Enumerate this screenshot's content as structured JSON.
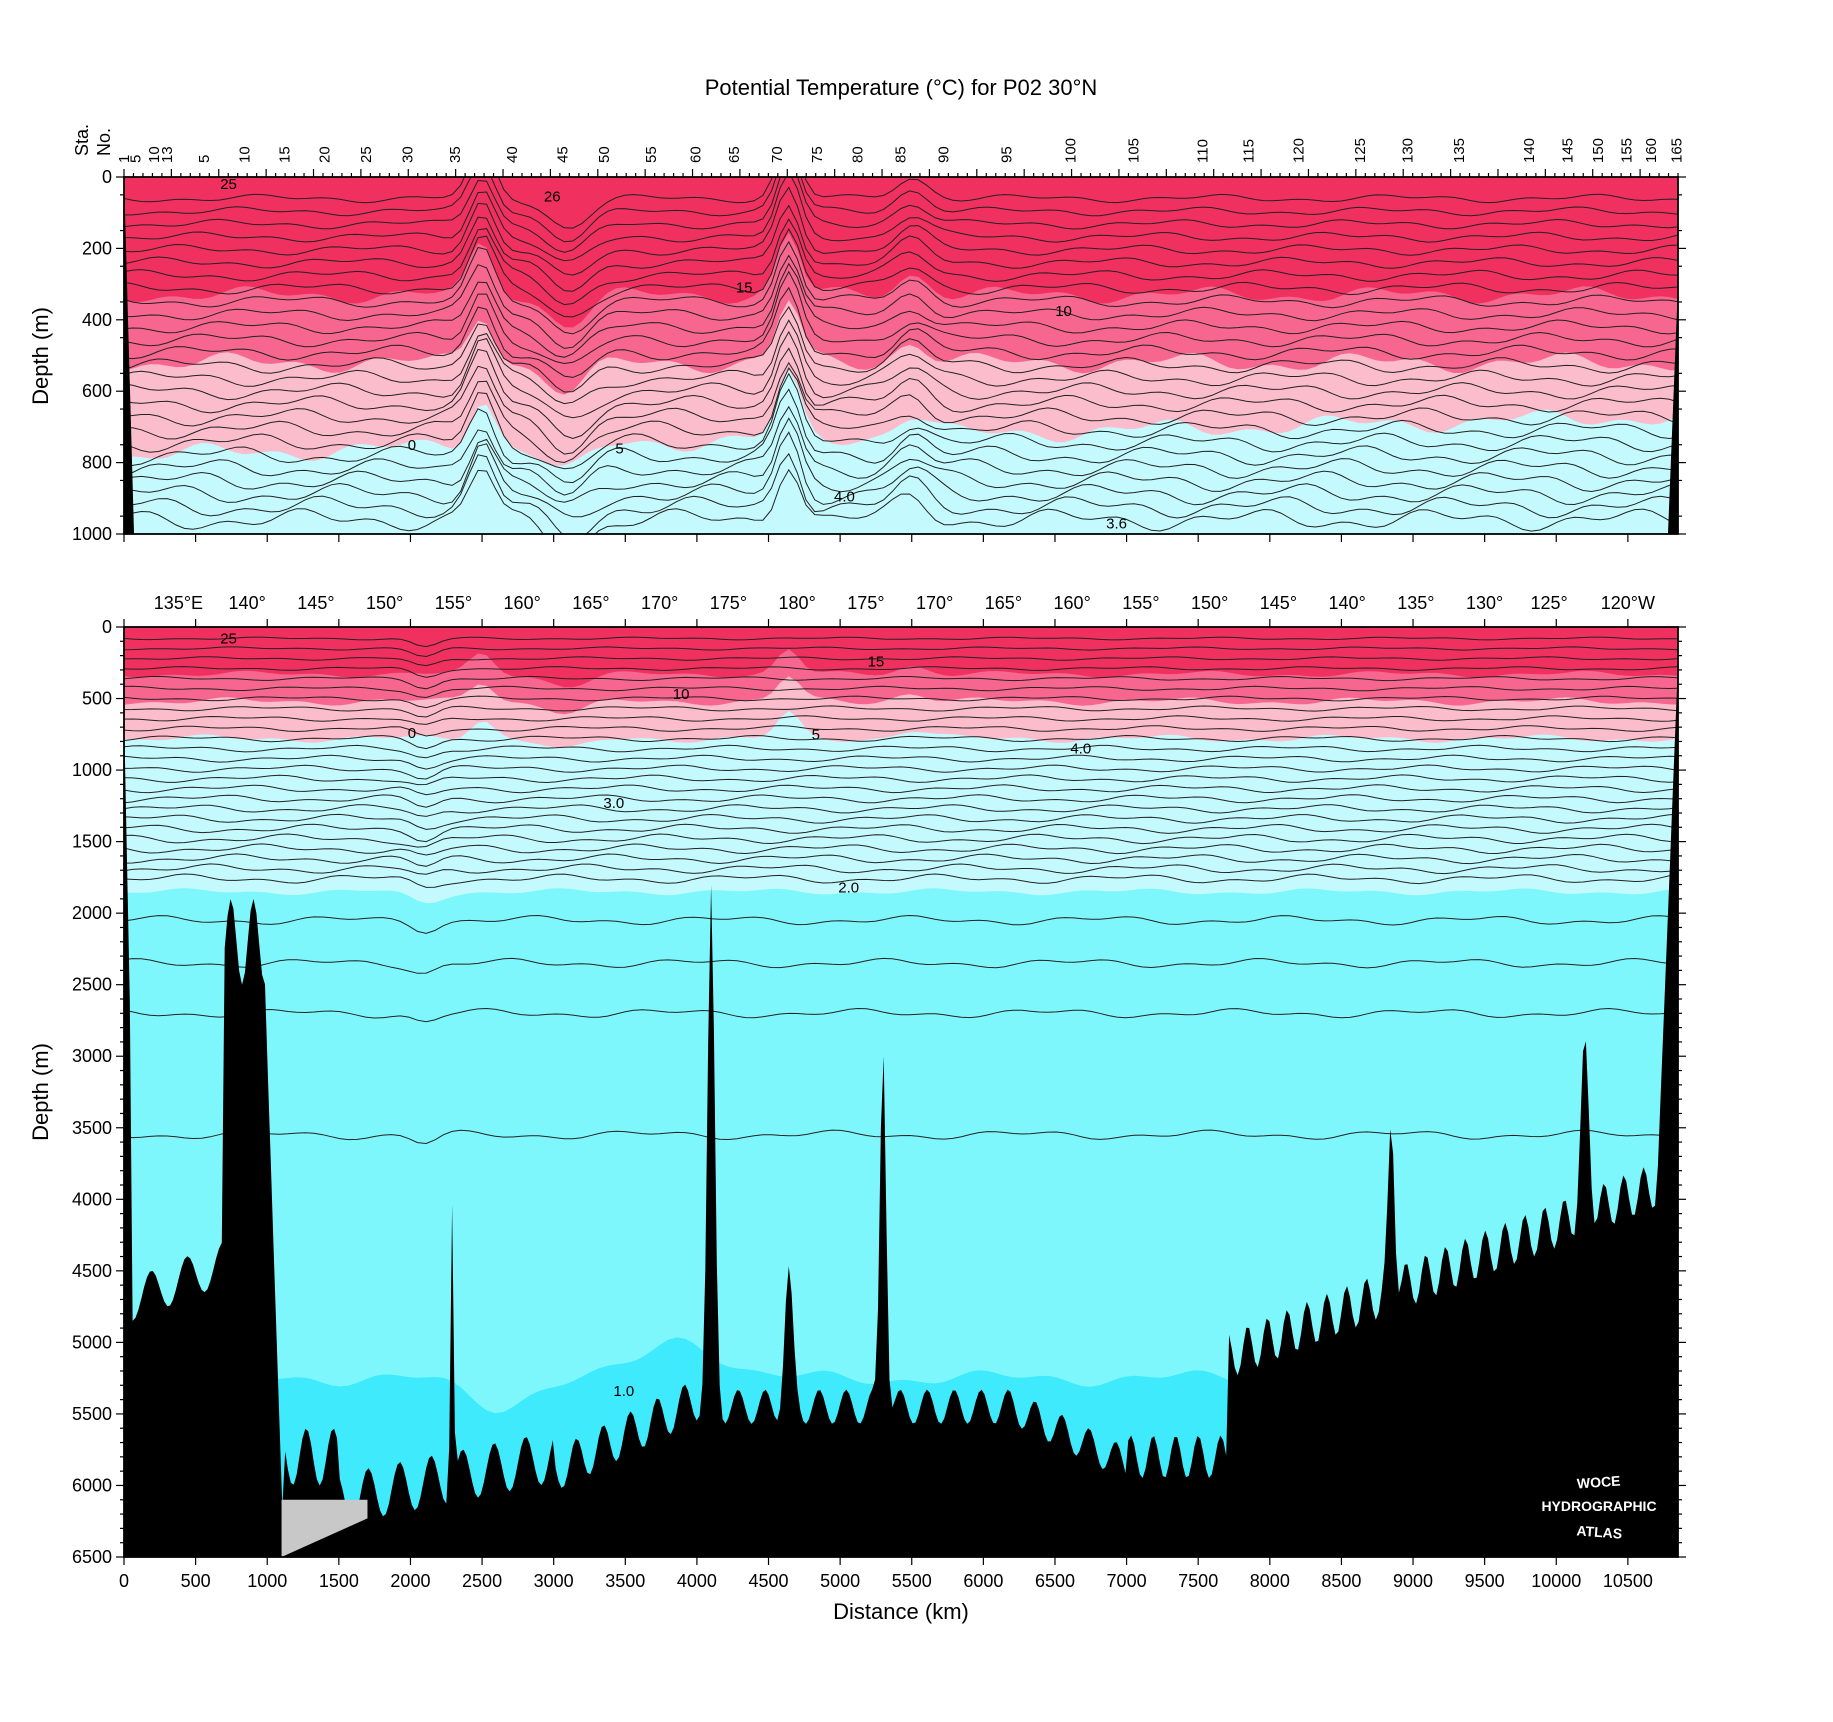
{
  "chart_data": [
    {
      "type": "heatmap",
      "panel": "upper",
      "title": "Potential Temperature (°C) for P02 30°N",
      "top_axis_title": [
        "Sta.",
        "No."
      ],
      "ylabel": "Depth (m)",
      "ylim": [
        1000,
        0
      ],
      "yticks": [
        0,
        200,
        400,
        600,
        800,
        1000
      ],
      "xlim": [
        0,
        10850
      ],
      "station_labels": [
        {
          "sta": "1",
          "x": 0
        },
        {
          "sta": "5",
          "x": 80
        },
        {
          "sta": "10",
          "x": 210
        },
        {
          "sta": "13",
          "x": 300
        },
        {
          "sta": "5",
          "x": 560
        },
        {
          "sta": "10",
          "x": 840
        },
        {
          "sta": "15",
          "x": 1120
        },
        {
          "sta": "20",
          "x": 1400
        },
        {
          "sta": "25",
          "x": 1690
        },
        {
          "sta": "30",
          "x": 1980
        },
        {
          "sta": "35",
          "x": 2310
        },
        {
          "sta": "40",
          "x": 2710
        },
        {
          "sta": "45",
          "x": 3060
        },
        {
          "sta": "50",
          "x": 3350
        },
        {
          "sta": "55",
          "x": 3680
        },
        {
          "sta": "60",
          "x": 3990
        },
        {
          "sta": "65",
          "x": 4260
        },
        {
          "sta": "70",
          "x": 4560
        },
        {
          "sta": "75",
          "x": 4840
        },
        {
          "sta": "80",
          "x": 5120
        },
        {
          "sta": "85",
          "x": 5420
        },
        {
          "sta": "90",
          "x": 5720
        },
        {
          "sta": "95",
          "x": 6160
        },
        {
          "sta": "100",
          "x": 6610
        },
        {
          "sta": "105",
          "x": 7050
        },
        {
          "sta": "110",
          "x": 7530
        },
        {
          "sta": "115",
          "x": 7850
        },
        {
          "sta": "120",
          "x": 8200
        },
        {
          "sta": "125",
          "x": 8630
        },
        {
          "sta": "130",
          "x": 8960
        },
        {
          "sta": "135",
          "x": 9320
        },
        {
          "sta": "140",
          "x": 9810
        },
        {
          "sta": "145",
          "x": 10080
        },
        {
          "sta": "150",
          "x": 10290
        },
        {
          "sta": "155",
          "x": 10490
        },
        {
          "sta": "160",
          "x": 10660
        },
        {
          "sta": "165",
          "x": 10840
        }
      ],
      "contour_labels": [
        {
          "text": "25",
          "x": 730,
          "y": 20
        },
        {
          "text": "26",
          "x": 2990,
          "y": 55
        },
        {
          "text": "15",
          "x": 4330,
          "y": 310
        },
        {
          "text": "10",
          "x": 6560,
          "y": 375
        },
        {
          "text": "0",
          "x": 2010,
          "y": 750
        },
        {
          "text": "5",
          "x": 3460,
          "y": 760
        },
        {
          "text": "4.0",
          "x": 5030,
          "y": 895
        },
        {
          "text": "3.6",
          "x": 6930,
          "y": 970
        }
      ]
    },
    {
      "type": "heatmap",
      "panel": "lower",
      "xlabel": "Distance (km)",
      "ylabel": "Depth (m)",
      "xlim": [
        0,
        10850
      ],
      "ylim": [
        6500,
        0
      ],
      "xticks": [
        0,
        500,
        1000,
        1500,
        2000,
        2500,
        3000,
        3500,
        4000,
        4500,
        5000,
        5500,
        6000,
        6500,
        7000,
        7500,
        8000,
        8500,
        9000,
        9500,
        10000,
        10500
      ],
      "yticks": [
        0,
        500,
        1000,
        1500,
        2000,
        2500,
        3000,
        3500,
        4000,
        4500,
        5000,
        5500,
        6000,
        6500
      ],
      "longitude_labels": [
        {
          "text": "135°E",
          "x": 380
        },
        {
          "text": "140°",
          "x": 860
        },
        {
          "text": "145°",
          "x": 1340
        },
        {
          "text": "150°",
          "x": 1820
        },
        {
          "text": "155°",
          "x": 2300
        },
        {
          "text": "160°",
          "x": 2780
        },
        {
          "text": "165°",
          "x": 3260
        },
        {
          "text": "170°",
          "x": 3740
        },
        {
          "text": "175°",
          "x": 4220
        },
        {
          "text": "180°",
          "x": 4700
        },
        {
          "text": "175°",
          "x": 5180
        },
        {
          "text": "170°",
          "x": 5660
        },
        {
          "text": "165°",
          "x": 6140
        },
        {
          "text": "160°",
          "x": 6620
        },
        {
          "text": "155°",
          "x": 7100
        },
        {
          "text": "150°",
          "x": 7580
        },
        {
          "text": "145°",
          "x": 8060
        },
        {
          "text": "140°",
          "x": 8540
        },
        {
          "text": "135°",
          "x": 9020
        },
        {
          "text": "130°",
          "x": 9500
        },
        {
          "text": "125°",
          "x": 9950
        },
        {
          "text": "120°W",
          "x": 10500
        }
      ],
      "contour_labels": [
        {
          "text": "25",
          "x": 730,
          "y": 80
        },
        {
          "text": "15",
          "x": 5250,
          "y": 240
        },
        {
          "text": "10",
          "x": 3890,
          "y": 470
        },
        {
          "text": "0",
          "x": 2010,
          "y": 740
        },
        {
          "text": "5",
          "x": 4830,
          "y": 750
        },
        {
          "text": "4.0",
          "x": 6680,
          "y": 850
        },
        {
          "text": "3.0",
          "x": 3420,
          "y": 1230
        },
        {
          "text": "2.0",
          "x": 5060,
          "y": 1820
        },
        {
          "text": "1.0",
          "x": 3490,
          "y": 5340
        }
      ],
      "watermark": [
        "WOCE",
        "HYDROGRAPHIC",
        "ATLAS"
      ]
    }
  ],
  "colors": {
    "warm_deep": "#f0305f",
    "warm_mid": "#f7668e",
    "warm_light": "#fbbccb",
    "cool_pale": "#c4fafd",
    "cool_mid": "#7ef7fc",
    "cool_deep": "#3eeafc",
    "bottom": "#000000"
  }
}
